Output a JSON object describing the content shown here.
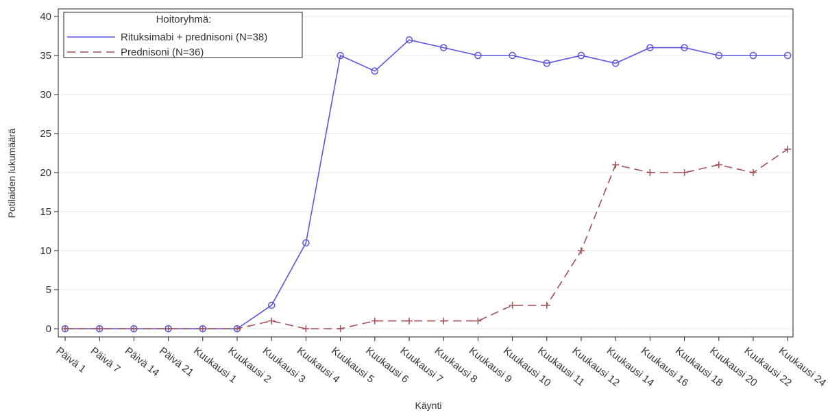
{
  "chart_data": {
    "type": "line",
    "xlabel": "Käynti",
    "ylabel": "Potilaiden lukumäärä",
    "categories": [
      "Päivä 1",
      "Päivä 7",
      "Päivä 14",
      "Päivä 21",
      "Kuukausi 1",
      "Kuukausi 2",
      "Kuukausi 3",
      "Kuukausi 4",
      "Kuukausi 5",
      "Kuukausi 6",
      "Kuukausi 7",
      "Kuukausi 8",
      "Kuukausi 9",
      "Kuukausi 10",
      "Kuukausi 11",
      "Kuukausi 12",
      "Kuukausi 14",
      "Kuukausi 16",
      "Kuukausi 18",
      "Kuukausi 20",
      "Kuukausi 22",
      "Kuukausi 24"
    ],
    "yticks": [
      0,
      5,
      10,
      15,
      20,
      25,
      30,
      35,
      40
    ],
    "ylim": [
      0,
      40
    ],
    "grid": true,
    "legend": {
      "title": "Hoitoryhmä:",
      "placement": "top-left"
    },
    "series": [
      {
        "name": "Rituksimabi + prednisoni (N=38)",
        "values": [
          0,
          0,
          0,
          0,
          0,
          0,
          3,
          11,
          35,
          33,
          37,
          36,
          35,
          35,
          34,
          35,
          34,
          36,
          36,
          35,
          35,
          35
        ],
        "color": "#5a55e0",
        "marker": "circle",
        "line_style": "solid"
      },
      {
        "name": "Prednisoni (N=36)",
        "values": [
          0,
          0,
          0,
          0,
          0,
          0,
          1,
          0,
          0,
          1,
          1,
          1,
          1,
          3,
          3,
          10,
          21,
          20,
          20,
          21,
          20,
          23
        ],
        "color": "#a05055",
        "marker": "plus",
        "line_style": "dashed"
      }
    ]
  }
}
